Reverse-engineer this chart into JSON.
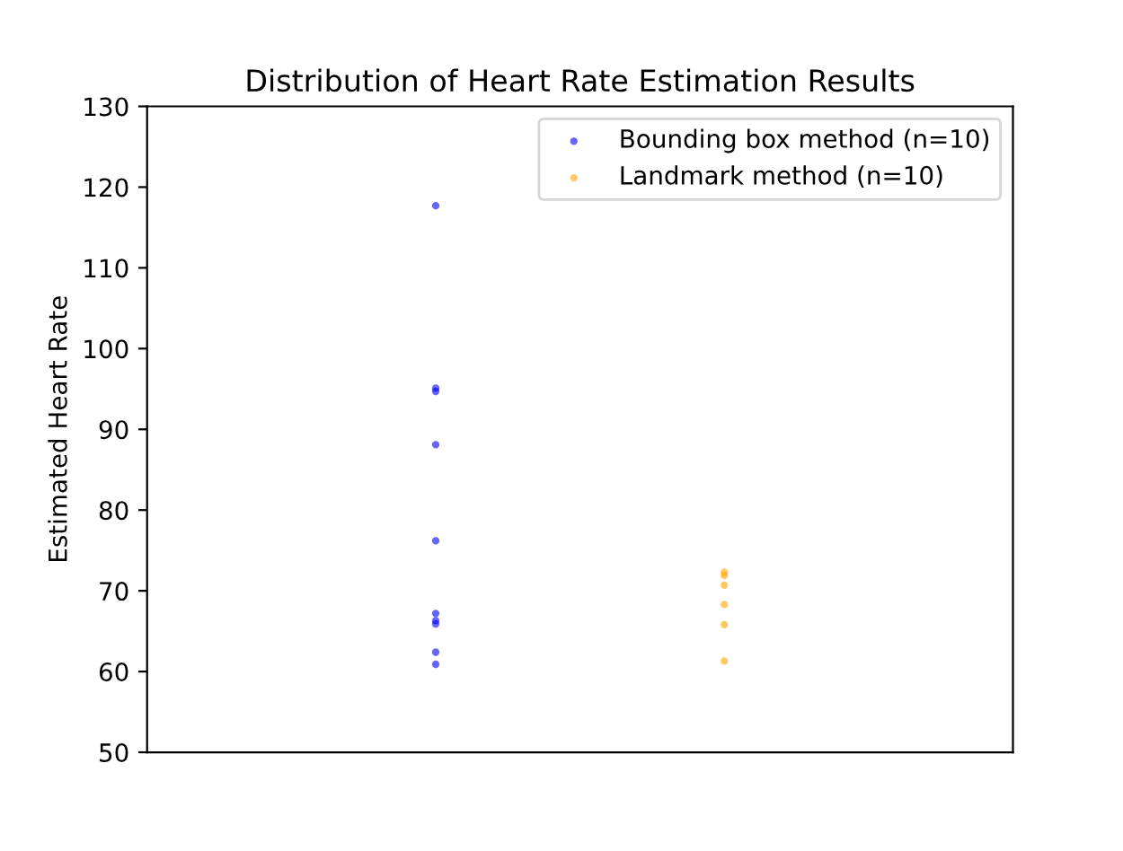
{
  "chart_data": {
    "type": "scatter",
    "title": "Distribution of Heart Rate Estimation Results",
    "ylabel": "Estimated Heart Rate",
    "categories": [
      null,
      null
    ],
    "ylim": [
      50,
      130
    ],
    "yticks": [
      50,
      60,
      70,
      80,
      90,
      100,
      110,
      120,
      130
    ],
    "grid": false,
    "legend": "top right",
    "marker": "circle",
    "series": [
      {
        "name": "Bounding box method (n=10)",
        "color": "#0000ff",
        "values": [
          117.7,
          null
        ]
      },
      {
        "color": "#0000ff",
        "values": [
          95.1,
          null
        ]
      },
      {
        "color": "#0000ff",
        "values": [
          94.7,
          null
        ]
      },
      {
        "color": "#0000ff",
        "values": [
          88.1,
          null
        ]
      },
      {
        "color": "#0000ff",
        "values": [
          76.2,
          null
        ]
      },
      {
        "color": "#0000ff",
        "values": [
          67.2,
          null
        ]
      },
      {
        "color": "#0000ff",
        "values": [
          66.3,
          null
        ]
      },
      {
        "color": "#0000ff",
        "values": [
          65.9,
          null
        ]
      },
      {
        "color": "#0000ff",
        "values": [
          62.4,
          null
        ]
      },
      {
        "color": "#0000ff",
        "values": [
          60.9,
          null
        ]
      },
      {
        "name": "Landmark method (n=10)",
        "color": "#ffa500",
        "values": [
          null,
          72.3
        ]
      },
      {
        "color": "#ffa500",
        "values": [
          null,
          71.9
        ]
      },
      {
        "color": "#ffa500",
        "values": [
          null,
          70.7
        ]
      },
      {
        "color": "#ffa500",
        "values": [
          null,
          68.3
        ]
      },
      {
        "color": "#ffa500",
        "values": [
          null,
          null
        ]
      },
      {
        "color": "#ffa500",
        "values": [
          null,
          null
        ]
      },
      {
        "color": "#ffa500",
        "values": [
          null,
          65.8
        ]
      },
      {
        "color": "#ffa500",
        "values": [
          null,
          null
        ]
      },
      {
        "color": "#ffa500",
        "values": [
          null,
          null
        ]
      },
      {
        "color": "#ffa500",
        "values": [
          null,
          61.3
        ]
      }
    ]
  }
}
